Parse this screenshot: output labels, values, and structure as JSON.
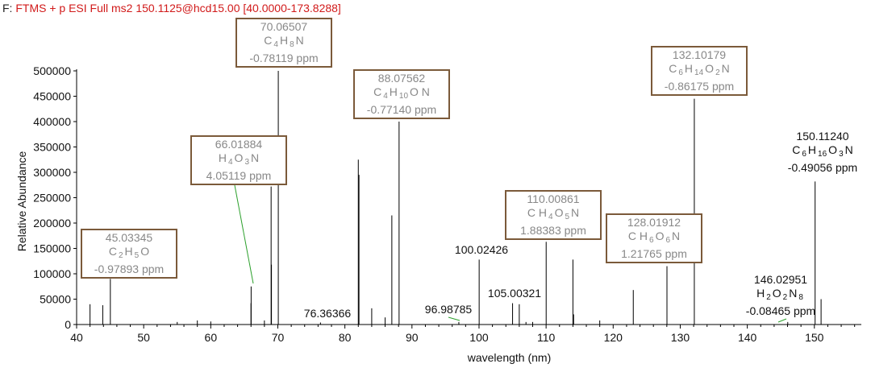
{
  "header": {
    "prefix": "F:",
    "filter": "FTMS + p ESI Full ms2 150.1125@hcd15.00 [40.0000-173.8288]"
  },
  "chart_data": {
    "type": "bar",
    "title": "FTMS + p ESI Full ms2 150.1125@hcd15.00 [40.0000-173.8288]",
    "xlabel": "wavelength (nm)",
    "ylabel": "Relative Abundance",
    "xlim": [
      40,
      157
    ],
    "ylim": [
      0,
      520000
    ],
    "xticks": [
      40,
      50,
      60,
      70,
      80,
      90,
      100,
      110,
      120,
      130,
      140,
      150
    ],
    "yticks": [
      0,
      50000,
      100000,
      150000,
      200000,
      250000,
      300000,
      350000,
      400000,
      450000,
      500000
    ],
    "peaks": [
      {
        "x": 42.0,
        "y": 40000
      },
      {
        "x": 43.9,
        "y": 38000
      },
      {
        "x": 45.03,
        "y": 90000
      },
      {
        "x": 55.0,
        "y": 5000
      },
      {
        "x": 58.0,
        "y": 8000
      },
      {
        "x": 60.0,
        "y": 6000
      },
      {
        "x": 66.02,
        "y": 75000
      },
      {
        "x": 66.0,
        "y": 42000
      },
      {
        "x": 68.0,
        "y": 8000
      },
      {
        "x": 69.05,
        "y": 118000
      },
      {
        "x": 69.0,
        "y": 272000
      },
      {
        "x": 70.07,
        "y": 500000
      },
      {
        "x": 76.36,
        "y": 4000
      },
      {
        "x": 82.0,
        "y": 325000
      },
      {
        "x": 82.1,
        "y": 295000
      },
      {
        "x": 84.0,
        "y": 32000
      },
      {
        "x": 86.0,
        "y": 14000
      },
      {
        "x": 87.0,
        "y": 215000
      },
      {
        "x": 88.08,
        "y": 400000
      },
      {
        "x": 96.99,
        "y": 5000
      },
      {
        "x": 100.02,
        "y": 128000
      },
      {
        "x": 105.0,
        "y": 42000
      },
      {
        "x": 106.0,
        "y": 40000
      },
      {
        "x": 107.0,
        "y": 5000
      },
      {
        "x": 108.0,
        "y": 5000
      },
      {
        "x": 110.01,
        "y": 163000
      },
      {
        "x": 114.0,
        "y": 128000
      },
      {
        "x": 114.1,
        "y": 20000
      },
      {
        "x": 118.0,
        "y": 8000
      },
      {
        "x": 123.0,
        "y": 68000
      },
      {
        "x": 128.02,
        "y": 115000
      },
      {
        "x": 132.1,
        "y": 445000
      },
      {
        "x": 146.03,
        "y": 5000
      },
      {
        "x": 150.11,
        "y": 282000
      },
      {
        "x": 151.0,
        "y": 50000
      }
    ],
    "annotations": [
      {
        "mz": "70.06507",
        "formula": [
          [
            "C",
            "4"
          ],
          [
            "H",
            "8"
          ],
          [
            "N",
            ""
          ]
        ],
        "ppm": "-0.78119 ppm",
        "boxed": true
      },
      {
        "mz": "66.01884",
        "formula": [
          [
            "H",
            "4"
          ],
          [
            "O",
            "3"
          ],
          [
            "N",
            ""
          ]
        ],
        "ppm": "4.05119 ppm",
        "boxed": true
      },
      {
        "mz": "88.07562",
        "formula": [
          [
            "C",
            "4"
          ],
          [
            "H",
            "10"
          ],
          [
            "O",
            ""
          ],
          [
            "N",
            ""
          ]
        ],
        "ppm": "-0.77140 ppm",
        "boxed": true
      },
      {
        "mz": "45.03345",
        "formula": [
          [
            "C",
            "2"
          ],
          [
            "H",
            "5"
          ],
          [
            "O",
            ""
          ]
        ],
        "ppm": "-0.97893 ppm",
        "boxed": true
      },
      {
        "mz": "132.10179",
        "formula": [
          [
            "C",
            "6"
          ],
          [
            "H",
            "14"
          ],
          [
            "O",
            "2"
          ],
          [
            "N",
            ""
          ]
        ],
        "ppm": "-0.86175 ppm",
        "boxed": true
      },
      {
        "mz": "150.11240",
        "formula": [
          [
            "C",
            "6"
          ],
          [
            "H",
            "16"
          ],
          [
            "O",
            "3"
          ],
          [
            "N",
            ""
          ]
        ],
        "ppm": "-0.49056 ppm",
        "boxed": false
      },
      {
        "mz": "110.00861",
        "formula": [
          [
            "C",
            ""
          ],
          [
            "H",
            "4"
          ],
          [
            "O",
            "5"
          ],
          [
            "N",
            ""
          ]
        ],
        "ppm": "1.88383 ppm",
        "boxed": true
      },
      {
        "mz": "128.01912",
        "formula": [
          [
            "C",
            ""
          ],
          [
            "H",
            "6"
          ],
          [
            "O",
            "6"
          ],
          [
            "N",
            ""
          ]
        ],
        "ppm": "1.21765 ppm",
        "boxed": true
      },
      {
        "mz": "146.02951",
        "formula": [
          [
            "H",
            "2"
          ],
          [
            "O",
            "2"
          ],
          [
            "N",
            "8"
          ]
        ],
        "ppm": "-0.08465 ppm",
        "boxed": false
      }
    ],
    "labels": [
      {
        "text": "100.02426",
        "x": 100.02
      },
      {
        "text": "105.00321",
        "x": 105.0
      },
      {
        "text": "76.36366",
        "x": 76.36
      },
      {
        "text": "96.98785",
        "x": 96.99
      }
    ]
  }
}
